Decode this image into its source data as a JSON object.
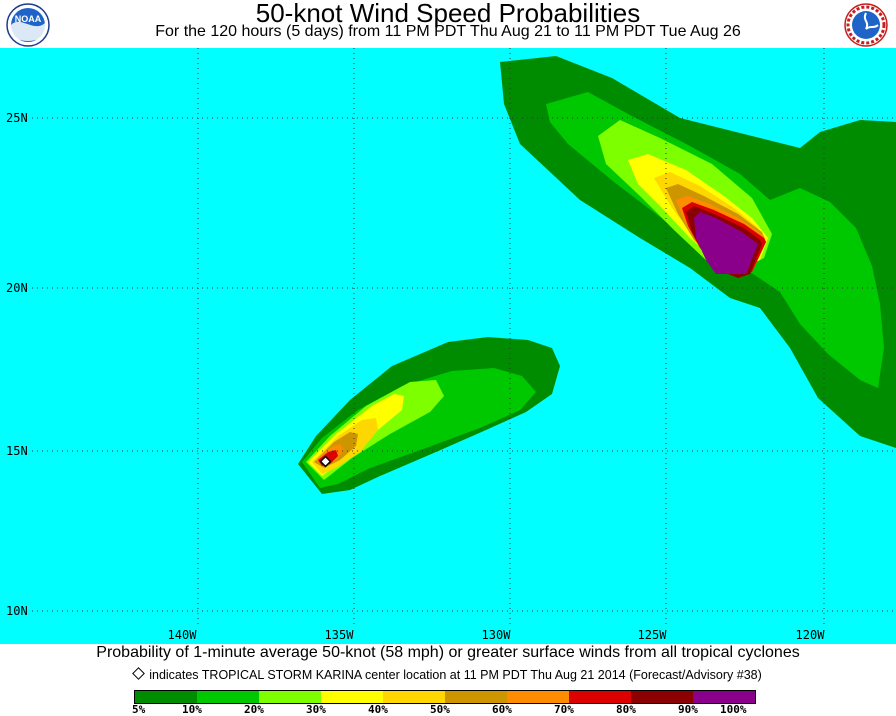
{
  "title": "50-knot Wind Speed Probabilities",
  "subtitle": "For the 120 hours (5 days) from 11 PM PDT Thu Aug 21 to 11 PM PDT Tue Aug 26",
  "logos": {
    "left": {
      "name": "noaa-logo",
      "text": "NOAA"
    },
    "right": {
      "name": "nws-logo",
      "text": "NATIONAL WEATHER SERVICE"
    }
  },
  "map": {
    "ocean_color": "#00ffff",
    "grid": "dotted",
    "lat_labels": [
      "25N",
      "20N",
      "15N",
      "10N"
    ],
    "lon_labels": [
      "140W",
      "135W",
      "130W",
      "125W",
      "120W"
    ]
  },
  "caption": "Probability of 1-minute average 50-knot (58 mph) or greater surface winds from all tropical cyclones",
  "storm_note": "indicates TROPICAL STORM KARINA center location at 11 PM PDT Thu Aug 21 2014 (Forecast/Advisory #38)",
  "legend": {
    "colors": [
      "#008c00",
      "#00c800",
      "#7dff00",
      "#ffff00",
      "#ffd700",
      "#cd9600",
      "#ff8c00",
      "#dc0000",
      "#8b0000",
      "#8b008b"
    ],
    "labels": [
      "5%",
      "10%",
      "20%",
      "30%",
      "40%",
      "50%",
      "60%",
      "70%",
      "80%",
      "90%",
      "100%"
    ]
  }
}
